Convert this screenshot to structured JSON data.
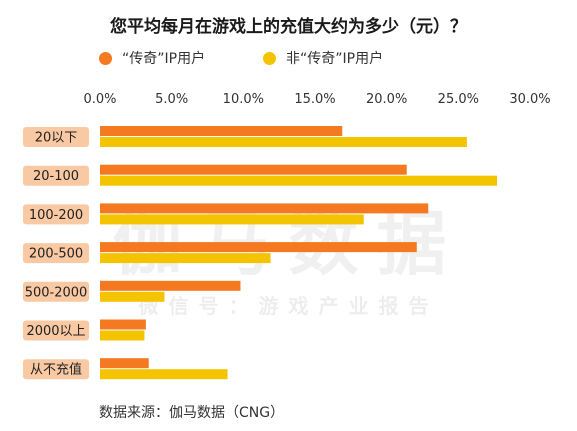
{
  "chart_data": {
    "type": "bar",
    "orientation": "horizontal",
    "title": "您平均每月在游戏上的充值大约为多少（元）？",
    "categories": [
      "20以下",
      "20-100",
      "100-200",
      "200-500",
      "500-2000",
      "2000以上",
      "从不充值"
    ],
    "series": [
      {
        "name": "“传奇”IP用户",
        "color": "#F47920",
        "values": [
          16.9,
          21.4,
          22.9,
          22.1,
          9.8,
          3.2,
          3.4
        ]
      },
      {
        "name": "非“传奇”IP用户",
        "color": "#F5C400",
        "values": [
          25.6,
          27.7,
          18.4,
          11.9,
          4.5,
          3.1,
          8.9
        ]
      }
    ],
    "xlim": [
      0,
      30
    ],
    "x_ticks": [
      "0.0%",
      "5.0%",
      "10.0%",
      "15.0%",
      "20.0%",
      "25.0%",
      "30.0%"
    ],
    "grid": false,
    "legend_position": "top-left",
    "category_label_bg": "#F9C9A3"
  },
  "watermark": {
    "main": "伽马数据",
    "sub": "微信号：游戏产业报告"
  },
  "footer": {
    "source": "数据来源：伽马数据（CNG）"
  }
}
